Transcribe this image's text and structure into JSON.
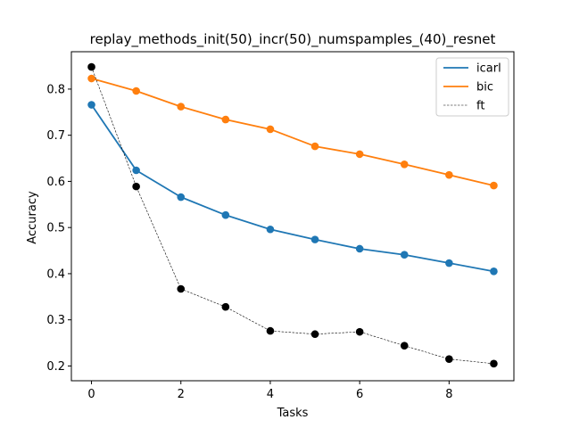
{
  "chart_data": {
    "type": "line",
    "title": "replay_methods_init(50)_incr(50)_numspamples_(40)_resnet",
    "xlabel": "Tasks",
    "ylabel": "Accuracy",
    "x": [
      0,
      1,
      2,
      3,
      4,
      5,
      6,
      7,
      8,
      9
    ],
    "xlim": [
      -0.45,
      9.45
    ],
    "ylim": [
      0.168,
      0.881
    ],
    "xticks": [
      0,
      2,
      4,
      6,
      8
    ],
    "yticks": [
      0.2,
      0.3,
      0.4,
      0.5,
      0.6,
      0.7,
      0.8
    ],
    "xtick_labels": [
      "0",
      "2",
      "4",
      "6",
      "8"
    ],
    "ytick_labels": [
      "0.2",
      "0.3",
      "0.4",
      "0.5",
      "0.6",
      "0.7",
      "0.8"
    ],
    "grid": false,
    "legend_position": "top-right",
    "series": [
      {
        "name": "icarl",
        "color": "#1f77b4",
        "line_style": "solid",
        "marker_color": "#1f77b4",
        "values": [
          0.766,
          0.624,
          0.566,
          0.527,
          0.496,
          0.474,
          0.454,
          0.441,
          0.423,
          0.405
        ]
      },
      {
        "name": "bic",
        "color": "#ff7f0e",
        "line_style": "solid",
        "marker_color": "#ff7f0e",
        "values": [
          0.823,
          0.796,
          0.762,
          0.734,
          0.713,
          0.676,
          0.659,
          0.637,
          0.614,
          0.591
        ]
      },
      {
        "name": "ft",
        "color": "#000000",
        "line_style": "dashed",
        "marker_color": "#000000",
        "values": [
          0.848,
          0.589,
          0.367,
          0.328,
          0.276,
          0.269,
          0.274,
          0.244,
          0.215,
          0.205
        ]
      }
    ]
  }
}
